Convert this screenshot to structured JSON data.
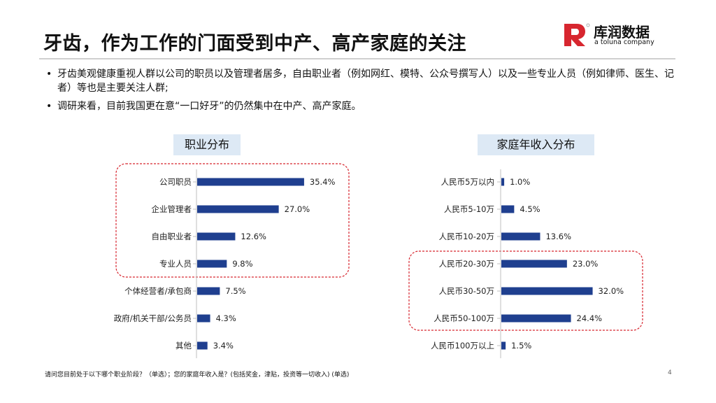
{
  "title": "牙齿，作为工作的门面受到中产、高产家庭的关注",
  "logo": {
    "name": "库润数据",
    "sub": "a toluna company",
    "brand_color": "#d7262f",
    "icon": "kr-logo-icon"
  },
  "bullets": [
    "牙齿美观健康重视人群以公司的职员以及管理者居多，自由职业者（例如网红、模特、公众号撰写人）以及一些专业人员（例如律师、医生、记者）等也是主要关注人群;",
    "调研来看，目前我国更在意“一口好牙”的仍然集中在中产、高产家庭。"
  ],
  "colors": {
    "bar": "#1f3f8f",
    "highlight": "#d7262f",
    "header_bg": "#dde9f5"
  },
  "chart_data": [
    {
      "type": "bar",
      "orientation": "horizontal",
      "title": "职业分布",
      "categories": [
        "公司职员",
        "企业管理者",
        "自由职业者",
        "专业人员",
        "个体经营者/承包商",
        "政府/机关干部/公务员",
        "其他"
      ],
      "values": [
        35.4,
        27.0,
        12.6,
        9.8,
        7.5,
        4.3,
        3.4
      ],
      "labels": [
        "35.4%",
        "27.0%",
        "12.6%",
        "9.8%",
        "7.5%",
        "4.3%",
        "3.4%"
      ],
      "unit": "%",
      "highlight_categories": [
        "公司职员",
        "企业管理者",
        "自由职业者",
        "专业人员"
      ]
    },
    {
      "type": "bar",
      "orientation": "horizontal",
      "title": "家庭年收入分布",
      "categories": [
        "人民币5万以内",
        "人民币5-10万",
        "人民币10-20万",
        "人民币20-30万",
        "人民币30-50万",
        "人民币50-100万",
        "人民币100万以上"
      ],
      "values": [
        1.0,
        4.5,
        13.6,
        23.0,
        32.0,
        24.4,
        1.5
      ],
      "labels": [
        "1.0%",
        "4.5%",
        "13.6%",
        "23.0%",
        "32.0%",
        "24.4%",
        "1.5%"
      ],
      "unit": "%",
      "highlight_categories": [
        "人民币20-30万",
        "人民币30-50万",
        "人民币50-100万"
      ]
    }
  ],
  "footnote": "请问您目前处于以下哪个职业阶段？（单选）；您的家庭年收入是？(包括奖金，津贴，投资等一切收入) (单选)",
  "page_number": "4"
}
